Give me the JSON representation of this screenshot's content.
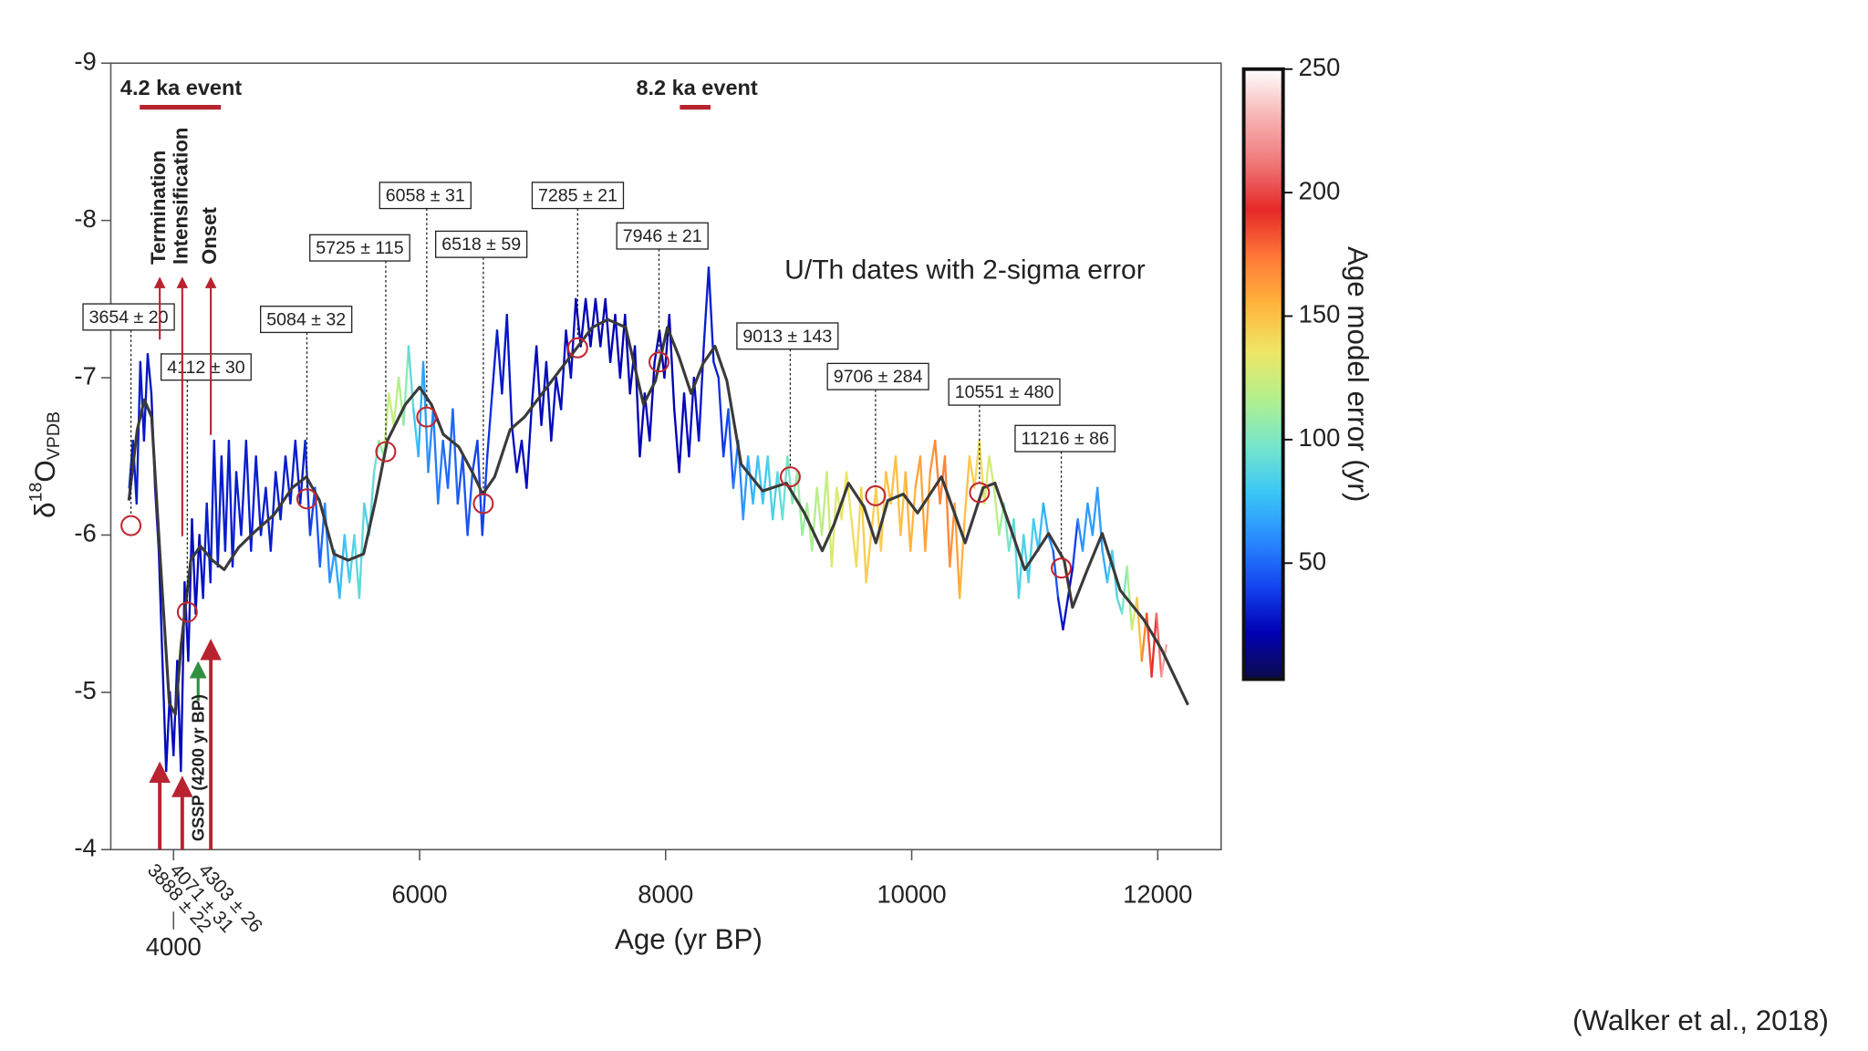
{
  "chart_data": {
    "type": "line",
    "xlabel": "Age (yr BP)",
    "ylabel": {
      "base": "δ",
      "sup": "18",
      "main": "O",
      "sub": "VPDB"
    },
    "annotation": "U/Th dates with 2-sigma error",
    "xlim": [
      3490,
      12515
    ],
    "ylim": [
      -4,
      -9
    ],
    "xticks": [
      4000,
      6000,
      8000,
      10000,
      12000
    ],
    "yticks": [
      -9,
      -8,
      -7,
      -6,
      -5,
      -4
    ],
    "series": [
      {
        "x": [
          3640,
          3670,
          3700,
          3730,
          3760,
          3790,
          3820,
          3850,
          3880,
          3910,
          3940,
          3970,
          4000,
          4030,
          4060,
          4090,
          4120,
          4150,
          4180,
          4210,
          4240,
          4270,
          4300,
          4330,
          4360,
          4390,
          4420,
          4450,
          4480,
          4510,
          4550,
          4590,
          4630,
          4670,
          4710,
          4750,
          4790,
          4830,
          4870,
          4910,
          4950,
          4990,
          5030,
          5070,
          5110,
          5150,
          5190,
          5230,
          5270,
          5310,
          5350,
          5390,
          5430,
          5470,
          5510,
          5550,
          5590,
          5630,
          5670,
          5710,
          5750,
          5790,
          5830,
          5870,
          5910,
          5950,
          5990,
          6030,
          6070,
          6110,
          6150,
          6190,
          6230,
          6270,
          6310,
          6350,
          6390,
          6430,
          6470,
          6510,
          6550,
          6590,
          6630,
          6670,
          6710,
          6750,
          6790,
          6830,
          6870,
          6910,
          6950,
          6990,
          7030,
          7070,
          7110,
          7150,
          7190,
          7230,
          7270,
          7310,
          7350,
          7390,
          7430,
          7470,
          7510,
          7550,
          7590,
          7630,
          7670,
          7710,
          7750,
          7790,
          7830,
          7870,
          7910,
          7950,
          7990,
          8030,
          8070,
          8110,
          8150,
          8190,
          8230,
          8270,
          8310,
          8350,
          8390,
          8430,
          8470,
          8510,
          8550,
          8590,
          8630,
          8670,
          8710,
          8750,
          8790,
          8830,
          8870,
          8910,
          8950,
          8990,
          9030,
          9070,
          9110,
          9150,
          9190,
          9230,
          9270,
          9310,
          9350,
          9390,
          9430,
          9470,
          9510,
          9550,
          9590,
          9630,
          9670,
          9710,
          9750,
          9790,
          9830,
          9870,
          9910,
          9950,
          9990,
          10030,
          10070,
          10110,
          10150,
          10190,
          10230,
          10270,
          10310,
          10350,
          10390,
          10430,
          10470,
          10510,
          10550,
          10590,
          10630,
          10670,
          10710,
          10750,
          10790,
          10830,
          10870,
          10910,
          10950,
          10990,
          11030,
          11070,
          11110,
          11150,
          11190,
          11230,
          11270,
          11310,
          11350,
          11390,
          11430,
          11470,
          11510,
          11550,
          11590,
          11630,
          11670,
          11710,
          11750,
          11790,
          11830,
          11870,
          11910,
          11950,
          11990,
          12030,
          12070
        ],
        "values": [
          -6.3,
          -6.6,
          -6.2,
          -7.1,
          -6.6,
          -7.15,
          -6.9,
          -6.3,
          -5.9,
          -5.2,
          -4.5,
          -5.0,
          -4.6,
          -5.2,
          -4.5,
          -5.7,
          -5.2,
          -6.1,
          -5.5,
          -6.0,
          -5.6,
          -6.2,
          -5.7,
          -6.6,
          -5.8,
          -6.5,
          -5.9,
          -6.6,
          -5.8,
          -6.4,
          -6.0,
          -6.6,
          -5.9,
          -6.5,
          -6.0,
          -6.3,
          -5.9,
          -6.4,
          -6.1,
          -6.5,
          -6.2,
          -6.6,
          -6.2,
          -6.6,
          -6.0,
          -6.3,
          -5.8,
          -6.2,
          -5.7,
          -5.9,
          -5.6,
          -6.0,
          -5.7,
          -6.0,
          -5.6,
          -6.2,
          -6.0,
          -6.4,
          -6.6,
          -6.5,
          -6.9,
          -6.7,
          -7.0,
          -6.7,
          -7.2,
          -6.8,
          -6.5,
          -7.1,
          -6.4,
          -6.8,
          -6.2,
          -6.6,
          -6.3,
          -6.8,
          -6.2,
          -6.5,
          -6.0,
          -6.4,
          -6.6,
          -6.0,
          -6.5,
          -6.9,
          -7.3,
          -6.9,
          -7.4,
          -6.7,
          -6.4,
          -6.6,
          -6.3,
          -6.8,
          -7.2,
          -6.7,
          -7.1,
          -6.6,
          -7.0,
          -6.8,
          -7.3,
          -7.0,
          -7.5,
          -7.2,
          -7.5,
          -7.2,
          -7.5,
          -7.2,
          -7.5,
          -7.1,
          -7.4,
          -7.0,
          -7.4,
          -6.9,
          -7.2,
          -6.5,
          -6.9,
          -6.6,
          -7.1,
          -7.3,
          -7.0,
          -7.4,
          -6.8,
          -6.4,
          -6.9,
          -6.5,
          -7.0,
          -6.6,
          -7.2,
          -7.7,
          -7.1,
          -7.0,
          -6.5,
          -6.8,
          -6.3,
          -6.6,
          -6.1,
          -6.5,
          -6.2,
          -6.5,
          -6.2,
          -6.5,
          -6.1,
          -6.4,
          -6.1,
          -6.5,
          -6.2,
          -6.4,
          -6.0,
          -6.2,
          -5.9,
          -6.3,
          -6.0,
          -6.4,
          -5.8,
          -6.3,
          -6.1,
          -6.4,
          -6.1,
          -5.8,
          -6.3,
          -5.7,
          -6.0,
          -6.3,
          -5.9,
          -6.4,
          -6.2,
          -6.5,
          -6.0,
          -6.4,
          -5.9,
          -6.3,
          -6.5,
          -5.9,
          -6.4,
          -6.6,
          -6.2,
          -6.5,
          -5.8,
          -6.2,
          -5.6,
          -6.1,
          -6.5,
          -6.3,
          -6.6,
          -6.2,
          -6.5,
          -6.3,
          -6.0,
          -6.2,
          -5.9,
          -6.1,
          -5.6,
          -6.0,
          -5.7,
          -6.1,
          -5.9,
          -6.2,
          -6.0,
          -5.9,
          -5.6,
          -5.4,
          -5.6,
          -5.8,
          -6.1,
          -5.9,
          -6.2,
          -6.0,
          -6.3,
          -5.9,
          -5.7,
          -5.9,
          -5.6,
          -5.5,
          -5.8,
          -5.4,
          -5.6,
          -5.2,
          -5.5,
          -5.1,
          -5.5,
          -5.1,
          -5.3
        ],
        "errors": [
          30,
          30,
          30,
          28,
          28,
          28,
          25,
          25,
          25,
          25,
          25,
          25,
          25,
          25,
          25,
          25,
          25,
          25,
          25,
          25,
          30,
          30,
          30,
          30,
          30,
          30,
          30,
          30,
          30,
          30,
          30,
          30,
          30,
          30,
          30,
          30,
          30,
          30,
          30,
          30,
          30,
          30,
          30,
          35,
          40,
          45,
          50,
          60,
          65,
          70,
          75,
          80,
          85,
          90,
          90,
          85,
          90,
          95,
          110,
          120,
          125,
          120,
          115,
          105,
          90,
          80,
          70,
          65,
          60,
          55,
          55,
          50,
          50,
          50,
          45,
          45,
          45,
          40,
          40,
          40,
          35,
          30,
          30,
          28,
          28,
          25,
          25,
          25,
          25,
          25,
          25,
          25,
          25,
          25,
          25,
          25,
          25,
          25,
          22,
          22,
          22,
          22,
          22,
          22,
          22,
          22,
          22,
          22,
          22,
          22,
          22,
          22,
          22,
          22,
          22,
          22,
          22,
          22,
          22,
          22,
          25,
          25,
          25,
          28,
          30,
          30,
          30,
          35,
          40,
          45,
          55,
          60,
          65,
          70,
          75,
          80,
          80,
          85,
          85,
          90,
          95,
          100,
          105,
          110,
          110,
          115,
          115,
          120,
          120,
          125,
          130,
          130,
          135,
          135,
          140,
          140,
          145,
          145,
          145,
          145,
          145,
          150,
          150,
          150,
          150,
          155,
          155,
          160,
          160,
          160,
          165,
          170,
          170,
          170,
          165,
          160,
          155,
          150,
          145,
          140,
          140,
          130,
          125,
          120,
          110,
          100,
          95,
          90,
          85,
          85,
          85,
          80,
          75,
          70,
          60,
          45,
          30,
          25,
          25,
          40,
          60,
          65,
          65,
          65,
          65,
          70,
          80,
          85,
          90,
          100,
          115,
          130,
          150,
          170,
          185,
          195,
          210,
          225,
          235
        ]
      },
      {
        "color": "#3a3a3a",
        "x": [
          3637,
          3705,
          3763,
          3822,
          3898,
          3966,
          4015,
          4063,
          4140,
          4218,
          4315,
          4412,
          4528,
          4673,
          4818,
          4964,
          5080,
          5186,
          5303,
          5419,
          5545,
          5642,
          5738,
          5884,
          6000,
          6096,
          6193,
          6319,
          6435,
          6513,
          6610,
          6736,
          6852,
          6997,
          7142,
          7288,
          7404,
          7530,
          7675,
          7820,
          7917,
          8014,
          8110,
          8207,
          8304,
          8401,
          8498,
          8614,
          8789,
          8982,
          9128,
          9273,
          9370,
          9486,
          9612,
          9709,
          9806,
          9932,
          10048,
          10242,
          10435,
          10580,
          10677,
          10774,
          10919,
          11113,
          11239,
          11307,
          11423,
          11549,
          11694,
          11888,
          12033,
          12246
        ],
        "values": [
          -6.22,
          -6.67,
          -6.86,
          -6.75,
          -5.77,
          -4.93,
          -4.86,
          -5.31,
          -5.84,
          -5.93,
          -5.84,
          -5.78,
          -5.92,
          -6.03,
          -6.13,
          -6.3,
          -6.37,
          -6.22,
          -5.88,
          -5.84,
          -5.88,
          -6.22,
          -6.6,
          -6.83,
          -6.94,
          -6.83,
          -6.64,
          -6.56,
          -6.39,
          -6.26,
          -6.37,
          -6.67,
          -6.75,
          -6.9,
          -7.05,
          -7.2,
          -7.32,
          -7.37,
          -7.32,
          -6.83,
          -6.98,
          -7.32,
          -7.13,
          -6.9,
          -7.09,
          -7.2,
          -6.98,
          -6.45,
          -6.28,
          -6.33,
          -6.14,
          -5.9,
          -6.07,
          -6.33,
          -6.18,
          -5.95,
          -6.22,
          -6.26,
          -6.14,
          -6.37,
          -5.95,
          -6.3,
          -6.33,
          -6.11,
          -5.78,
          -6.01,
          -5.84,
          -5.54,
          -5.77,
          -6.01,
          -5.65,
          -5.46,
          -5.27,
          -4.92
        ]
      }
    ],
    "dates": [
      {
        "label": "3654 ± 20",
        "x": 3654,
        "y": -6.06
      },
      {
        "label": "4112 ± 30",
        "x": 4112,
        "y": -5.51
      },
      {
        "label": "5084 ± 32",
        "x": 5084,
        "y": -6.23
      },
      {
        "label": "5725 ± 115",
        "x": 5725,
        "y": -6.53
      },
      {
        "label": "6058 ± 31",
        "x": 6058,
        "y": -6.75
      },
      {
        "label": "6518 ± 59",
        "x": 6518,
        "y": -6.2
      },
      {
        "label": "7285 ± 21",
        "x": 7285,
        "y": -7.19
      },
      {
        "label": "7946 ± 21",
        "x": 7946,
        "y": -7.1
      },
      {
        "label": "9013 ± 143",
        "x": 9013,
        "y": -6.37
      },
      {
        "label": "9706 ± 284",
        "x": 9706,
        "y": -6.25
      },
      {
        "label": "10551 ± 480",
        "x": 10551,
        "y": -6.27
      },
      {
        "label": "11216 ± 86",
        "x": 11216,
        "y": -5.79
      }
    ],
    "events": [
      {
        "label": "4.2 ka event",
        "start": 3725,
        "end": 4385
      },
      {
        "label": "8.2 ka event",
        "start": 8115,
        "end": 8365
      }
    ],
    "phases": [
      {
        "name": "Termination",
        "date": "3888 ± 22",
        "x": 3888
      },
      {
        "name": "Intensification",
        "date": "4071 ± 31",
        "x": 4071
      },
      {
        "name": "Onset",
        "date": "4303 ± 26",
        "x": 4303
      }
    ],
    "gssp": {
      "label": "GSSP (4200 yr BP)",
      "x": 4200
    },
    "colorbar": {
      "label": "Age model error (yr)",
      "lim": [
        3,
        250
      ],
      "ticks": [
        50,
        100,
        150,
        200,
        250
      ],
      "colors": [
        "#0b0b4a",
        "#0000b4",
        "#1446f0",
        "#2a8cff",
        "#3cc8f5",
        "#78e6c8",
        "#b4f08c",
        "#f0e664",
        "#ffb43c",
        "#ff7838",
        "#e62828",
        "#f07878",
        "#f8b4b4",
        "#ffffff"
      ]
    }
  },
  "caption": "(Walker et al., 2018)"
}
